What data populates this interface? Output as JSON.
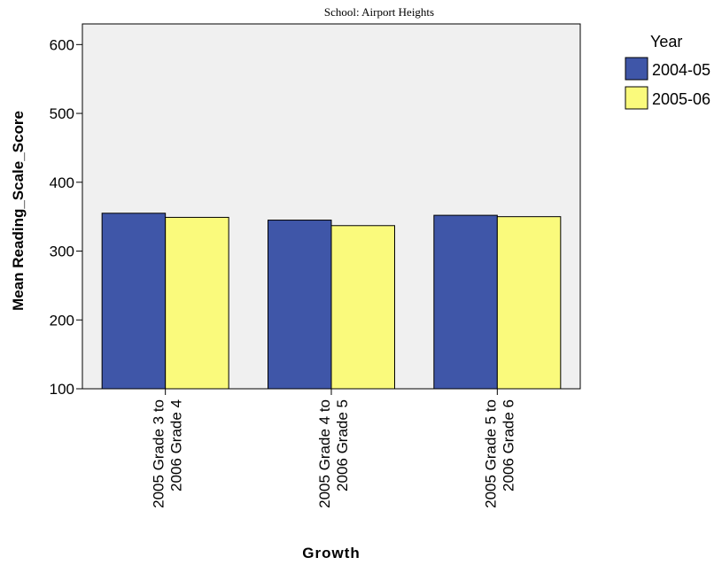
{
  "chart_data": {
    "type": "bar",
    "title": "School: Airport Heights",
    "xlabel": "Growth",
    "ylabel": "Mean Reading_Scale_Score",
    "categories": [
      [
        "2005 Grade 3 to",
        "2006 Grade 4"
      ],
      [
        "2005 Grade 4 to",
        "2006 Grade 5"
      ],
      [
        "2005 Grade 5 to",
        "2006 Grade 6"
      ]
    ],
    "series": [
      {
        "name": "2004-05",
        "color": "#3f56a8",
        "values": [
          355,
          345,
          352
        ]
      },
      {
        "name": "2005-06",
        "color": "#fafa7c",
        "values": [
          349,
          337,
          350
        ]
      }
    ],
    "ylim": [
      100,
      630
    ],
    "yticks": [
      100,
      200,
      300,
      400,
      500,
      600
    ],
    "legend": {
      "title": "Year",
      "placement": "right"
    },
    "plot_background": "#f0f0f0",
    "grid": false
  }
}
